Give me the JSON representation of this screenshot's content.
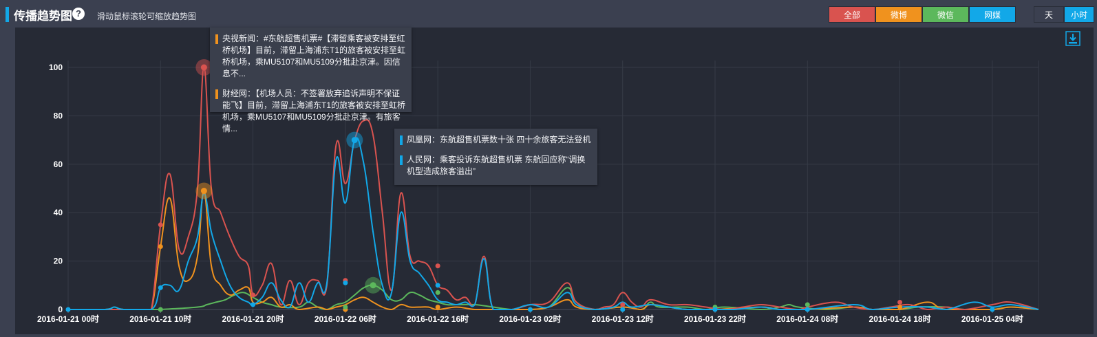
{
  "header": {
    "title": "传播趋势图",
    "help_icon": "?",
    "hint": "滑动鼠标滚轮可缩放趋势图"
  },
  "filters": [
    {
      "label": "全部",
      "color": "#d9534f"
    },
    {
      "label": "微博",
      "color": "#f0921e"
    },
    {
      "label": "微信",
      "color": "#5cb85c"
    },
    {
      "label": "网媒",
      "color": "#12a8e8"
    }
  ],
  "granularity": {
    "day_label": "天",
    "hour_label": "小时",
    "active": "hour",
    "active_color": "#12a8e8"
  },
  "tooltips": {
    "first": [
      {
        "text": "央视新闻：#东航超售机票#【滞留乘客被安排至虹桥机场】目前，滞留上海浦东T1的旅客被安排至虹桥机场，乘MU5107和MU5109分批赴京津。因信息不...",
        "color": "#f0921e"
      },
      {
        "text": "财经网：【机场人员：不签署放弃追诉声明不保证能飞】目前，滞留上海浦东T1的旅客被安排至虹桥机场，乘MU5107和MU5109分批赴京津。有旅客情...",
        "color": "#f0921e"
      }
    ],
    "second": [
      {
        "text": "凤凰网：东航超售机票数十张 四十余旅客无法登机",
        "color": "#12a8e8"
      },
      {
        "text": "人民网：乘客投诉东航超售机票 东航回应称“调换机型造成旅客溢出”",
        "color": "#12a8e8"
      }
    ]
  },
  "chart_data": {
    "type": "line",
    "x_tick_labels": [
      "2016-01-21 00时",
      "2016-01-21 10时",
      "2016-01-21 20时",
      "2016-01-22 06时",
      "2016-01-22 16时",
      "2016-01-23 02时",
      "2016-01-23 12时",
      "2016-01-23 22时",
      "2016-01-24 08时",
      "2016-01-24 18时",
      "2016-01-25 04时"
    ],
    "x_unit": "hours since 2016-01-21 00时",
    "xlim": [
      0,
      105
    ],
    "ylim": [
      0,
      100
    ],
    "y_ticks": [
      0,
      20,
      40,
      60,
      80,
      100
    ],
    "grid": true,
    "series": [
      {
        "name": "全部",
        "color": "#d9534f",
        "points": [
          [
            0,
            0
          ],
          [
            5,
            0
          ],
          [
            8,
            0
          ],
          [
            9,
            0
          ],
          [
            10,
            35
          ],
          [
            11,
            56
          ],
          [
            12,
            25
          ],
          [
            13,
            30
          ],
          [
            14,
            50
          ],
          [
            14.7,
            100
          ],
          [
            15.5,
            50
          ],
          [
            16.5,
            40
          ],
          [
            17.5,
            30
          ],
          [
            18.5,
            22
          ],
          [
            19.5,
            18
          ],
          [
            20,
            6
          ],
          [
            21,
            10
          ],
          [
            22,
            19
          ],
          [
            23,
            2
          ],
          [
            24,
            12
          ],
          [
            25,
            2
          ],
          [
            26,
            11
          ],
          [
            27,
            12
          ],
          [
            28,
            10
          ],
          [
            29,
            68
          ],
          [
            30,
            52
          ],
          [
            31,
            70
          ],
          [
            32,
            78
          ],
          [
            33,
            72
          ],
          [
            34,
            40
          ],
          [
            35,
            8
          ],
          [
            36,
            48
          ],
          [
            37,
            22
          ],
          [
            38,
            20
          ],
          [
            39,
            18
          ],
          [
            40,
            10
          ],
          [
            41,
            8
          ],
          [
            42,
            4
          ],
          [
            43,
            5
          ],
          [
            44,
            2
          ],
          [
            45,
            22
          ],
          [
            46,
            0
          ],
          [
            48,
            0
          ],
          [
            50,
            2
          ],
          [
            52,
            3
          ],
          [
            54,
            11
          ],
          [
            55,
            3
          ],
          [
            57,
            0
          ],
          [
            58,
            1
          ],
          [
            59,
            2
          ],
          [
            60,
            7
          ],
          [
            61,
            3
          ],
          [
            62,
            1
          ],
          [
            63,
            4
          ],
          [
            65,
            2
          ],
          [
            67,
            2
          ],
          [
            69,
            1
          ],
          [
            71,
            0
          ],
          [
            73,
            1
          ],
          [
            75,
            2
          ],
          [
            77,
            1
          ],
          [
            79,
            0
          ],
          [
            80,
            1
          ],
          [
            83,
            3
          ],
          [
            85,
            1
          ],
          [
            87,
            0
          ],
          [
            89,
            1
          ],
          [
            91,
            2
          ],
          [
            93,
            0
          ],
          [
            95,
            1
          ],
          [
            97,
            0
          ],
          [
            100,
            2
          ],
          [
            102,
            3
          ],
          [
            105,
            0
          ]
        ]
      },
      {
        "name": "微博",
        "color": "#f0921e",
        "points": [
          [
            0,
            0
          ],
          [
            8,
            0
          ],
          [
            9,
            0
          ],
          [
            10,
            26
          ],
          [
            11,
            46
          ],
          [
            12,
            18
          ],
          [
            13,
            12
          ],
          [
            14,
            22
          ],
          [
            14.7,
            49
          ],
          [
            15.5,
            18
          ],
          [
            16.5,
            10
          ],
          [
            17.5,
            6
          ],
          [
            18.5,
            8
          ],
          [
            19.5,
            9
          ],
          [
            20,
            3
          ],
          [
            21,
            3
          ],
          [
            22,
            5
          ],
          [
            23,
            1
          ],
          [
            24,
            2
          ],
          [
            25,
            0
          ],
          [
            27,
            1
          ],
          [
            28,
            0
          ],
          [
            29,
            1
          ],
          [
            30,
            2
          ],
          [
            31,
            4
          ],
          [
            32,
            5
          ],
          [
            33,
            3
          ],
          [
            34,
            1
          ],
          [
            35,
            0
          ],
          [
            36,
            2
          ],
          [
            37,
            1
          ],
          [
            38,
            1
          ],
          [
            39,
            1
          ],
          [
            40,
            0
          ],
          [
            42,
            1
          ],
          [
            44,
            0
          ],
          [
            46,
            0
          ],
          [
            50,
            0
          ],
          [
            52,
            1
          ],
          [
            54,
            4
          ],
          [
            55,
            1
          ],
          [
            57,
            0
          ],
          [
            60,
            1
          ],
          [
            62,
            0
          ],
          [
            63,
            2
          ],
          [
            65,
            1
          ],
          [
            67,
            0
          ],
          [
            70,
            0
          ],
          [
            75,
            1
          ],
          [
            77,
            0
          ],
          [
            80,
            0
          ],
          [
            85,
            1
          ],
          [
            87,
            0
          ],
          [
            90,
            0
          ],
          [
            93,
            3
          ],
          [
            95,
            0
          ],
          [
            100,
            0
          ],
          [
            102,
            1
          ],
          [
            105,
            0
          ]
        ]
      },
      {
        "name": "微信",
        "color": "#5cb85c",
        "points": [
          [
            0,
            0
          ],
          [
            4,
            0
          ],
          [
            5,
            1
          ],
          [
            6,
            0
          ],
          [
            9,
            0
          ],
          [
            10,
            0
          ],
          [
            14,
            1
          ],
          [
            15,
            2
          ],
          [
            16,
            3
          ],
          [
            17,
            4
          ],
          [
            18,
            6
          ],
          [
            19,
            7
          ],
          [
            20,
            5
          ],
          [
            21,
            3
          ],
          [
            22,
            2
          ],
          [
            23,
            1
          ],
          [
            25,
            1
          ],
          [
            26,
            3
          ],
          [
            27,
            1
          ],
          [
            28,
            0
          ],
          [
            29,
            2
          ],
          [
            30,
            3
          ],
          [
            31,
            6
          ],
          [
            32,
            9
          ],
          [
            33,
            10
          ],
          [
            34,
            8
          ],
          [
            35,
            4
          ],
          [
            36,
            4
          ],
          [
            37,
            7
          ],
          [
            38,
            6
          ],
          [
            39,
            4
          ],
          [
            40,
            3
          ],
          [
            41,
            2
          ],
          [
            42,
            2
          ],
          [
            44,
            2
          ],
          [
            46,
            1
          ],
          [
            48,
            0
          ],
          [
            50,
            0
          ],
          [
            52,
            1
          ],
          [
            54,
            9
          ],
          [
            55,
            3
          ],
          [
            57,
            0
          ],
          [
            60,
            1
          ],
          [
            62,
            0
          ],
          [
            63,
            3
          ],
          [
            64,
            1
          ],
          [
            67,
            1
          ],
          [
            69,
            0
          ],
          [
            71,
            1
          ],
          [
            75,
            0
          ],
          [
            77,
            1
          ],
          [
            78,
            2
          ],
          [
            79,
            1
          ],
          [
            82,
            0
          ],
          [
            85,
            1
          ],
          [
            87,
            0
          ],
          [
            90,
            0
          ],
          [
            92,
            1
          ],
          [
            95,
            1
          ],
          [
            97,
            0
          ],
          [
            100,
            0
          ],
          [
            102,
            1
          ],
          [
            105,
            0
          ]
        ]
      },
      {
        "name": "网媒",
        "color": "#12a8e8",
        "points": [
          [
            0,
            0
          ],
          [
            4,
            0
          ],
          [
            5,
            1
          ],
          [
            6,
            0
          ],
          [
            9,
            0
          ],
          [
            10,
            9
          ],
          [
            11,
            10
          ],
          [
            12,
            8
          ],
          [
            13,
            20
          ],
          [
            14,
            30
          ],
          [
            14.7,
            48
          ],
          [
            15.5,
            32
          ],
          [
            16.5,
            20
          ],
          [
            17.5,
            10
          ],
          [
            18.5,
            5
          ],
          [
            19.5,
            3
          ],
          [
            20,
            2
          ],
          [
            21,
            5
          ],
          [
            22,
            11
          ],
          [
            23,
            4
          ],
          [
            24,
            1
          ],
          [
            25,
            11
          ],
          [
            26,
            3
          ],
          [
            27,
            11
          ],
          [
            28,
            11
          ],
          [
            29,
            62
          ],
          [
            30,
            44
          ],
          [
            31,
            70
          ],
          [
            32,
            60
          ],
          [
            33,
            32
          ],
          [
            34,
            10
          ],
          [
            35,
            7
          ],
          [
            36,
            40
          ],
          [
            37,
            20
          ],
          [
            38,
            15
          ],
          [
            39,
            10
          ],
          [
            40,
            4
          ],
          [
            41,
            3
          ],
          [
            42,
            2
          ],
          [
            43,
            3
          ],
          [
            44,
            2
          ],
          [
            45,
            21
          ],
          [
            46,
            0
          ],
          [
            48,
            0
          ],
          [
            50,
            2
          ],
          [
            52,
            1
          ],
          [
            54,
            7
          ],
          [
            55,
            2
          ],
          [
            57,
            0
          ],
          [
            59,
            1
          ],
          [
            60,
            3
          ],
          [
            61,
            1
          ],
          [
            63,
            2
          ],
          [
            65,
            1
          ],
          [
            67,
            0
          ],
          [
            70,
            0
          ],
          [
            72,
            0
          ],
          [
            75,
            1
          ],
          [
            77,
            0
          ],
          [
            80,
            0
          ],
          [
            85,
            2
          ],
          [
            87,
            0
          ],
          [
            90,
            1
          ],
          [
            93,
            1
          ],
          [
            95,
            0
          ],
          [
            98,
            3
          ],
          [
            100,
            1
          ],
          [
            102,
            2
          ],
          [
            105,
            0
          ]
        ]
      }
    ],
    "highlights": [
      {
        "series": "全部",
        "x": 14.7,
        "y": 100
      },
      {
        "series": "微博",
        "x": 14.7,
        "y": 49
      },
      {
        "series": "网媒",
        "x": 31,
        "y": 70
      },
      {
        "series": "微信",
        "x": 33,
        "y": 10
      }
    ],
    "markers": [
      {
        "series": "全部",
        "x": 10,
        "y": 35
      },
      {
        "series": "全部",
        "x": 20,
        "y": 6
      },
      {
        "series": "全部",
        "x": 30,
        "y": 12
      },
      {
        "series": "全部",
        "x": 40,
        "y": 18
      },
      {
        "series": "全部",
        "x": 60,
        "y": 2
      },
      {
        "series": "全部",
        "x": 90,
        "y": 3
      },
      {
        "series": "微博",
        "x": 10,
        "y": 26
      },
      {
        "series": "微博",
        "x": 30,
        "y": 0
      },
      {
        "series": "微博",
        "x": 40,
        "y": 1
      },
      {
        "series": "微博",
        "x": 90,
        "y": 1
      },
      {
        "series": "微信",
        "x": 10,
        "y": 0
      },
      {
        "series": "微信",
        "x": 30,
        "y": 1
      },
      {
        "series": "微信",
        "x": 40,
        "y": 7
      },
      {
        "series": "微信",
        "x": 70,
        "y": 1
      },
      {
        "series": "微信",
        "x": 80,
        "y": 2
      },
      {
        "series": "网媒",
        "x": 0,
        "y": 0
      },
      {
        "series": "网媒",
        "x": 10,
        "y": 9
      },
      {
        "series": "网媒",
        "x": 20,
        "y": 2
      },
      {
        "series": "网媒",
        "x": 30,
        "y": 11
      },
      {
        "series": "网媒",
        "x": 40,
        "y": 10
      },
      {
        "series": "网媒",
        "x": 50,
        "y": 0
      },
      {
        "series": "网媒",
        "x": 60,
        "y": 0
      },
      {
        "series": "网媒",
        "x": 70,
        "y": 0
      },
      {
        "series": "网媒",
        "x": 80,
        "y": 0
      },
      {
        "series": "网媒",
        "x": 100,
        "y": 0
      }
    ]
  }
}
